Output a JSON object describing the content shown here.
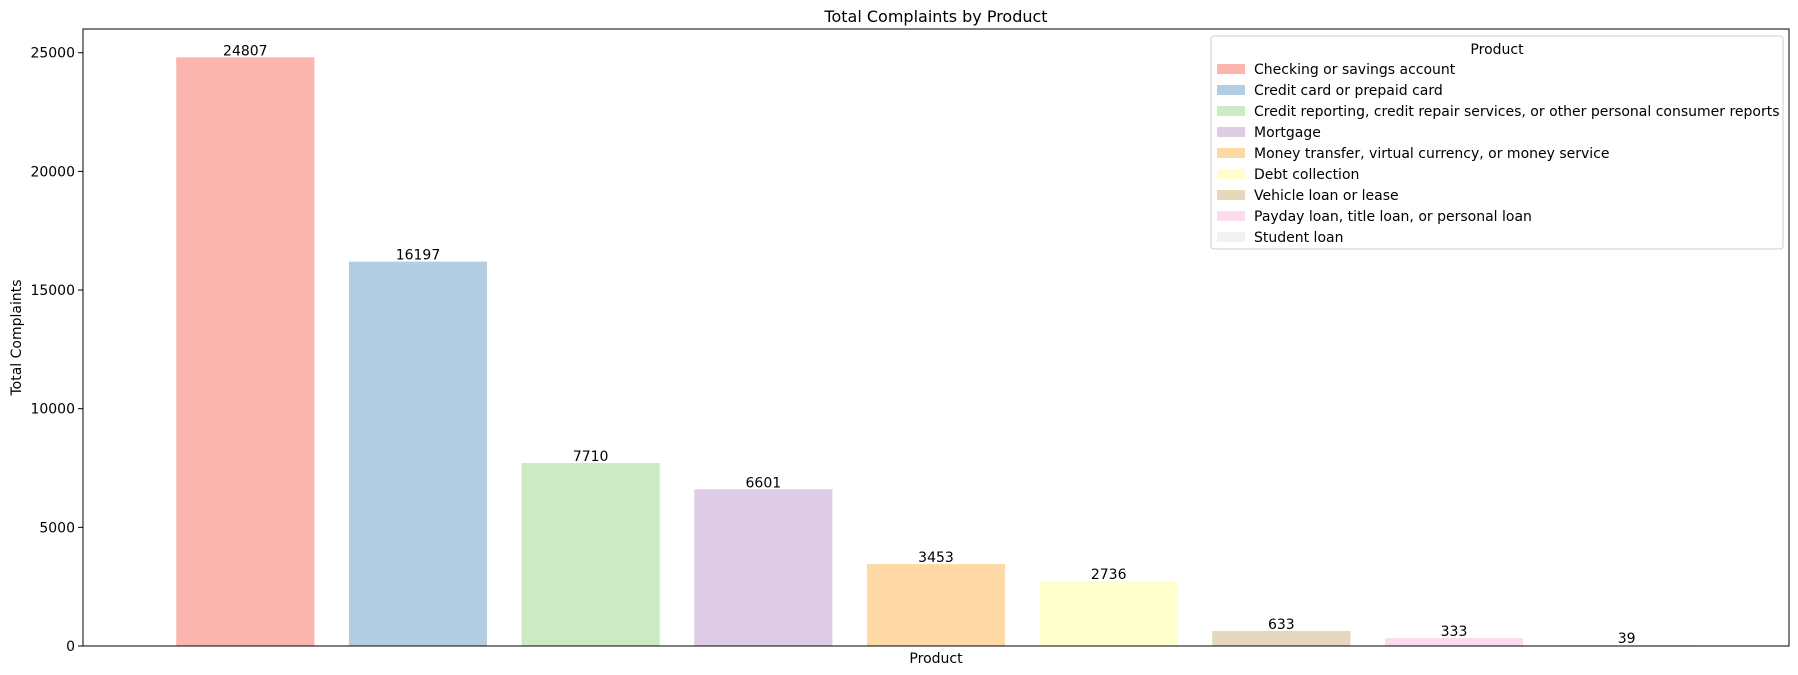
{
  "chart_data": {
    "type": "bar",
    "title": "Total Complaints by Product",
    "xlabel": "Product",
    "ylabel": "Total Complaints",
    "categories": [
      "Checking or savings account",
      "Credit card or prepaid card",
      "Credit reporting, credit repair services, or other personal consumer reports",
      "Mortgage",
      "Money transfer, virtual currency, or money service",
      "Debt collection",
      "Vehicle loan or lease",
      "Payday loan, title loan, or personal loan",
      "Student loan"
    ],
    "values": [
      24807,
      16197,
      7710,
      6601,
      3453,
      2736,
      633,
      333,
      39
    ],
    "colors": [
      "#fbb4ae",
      "#b3cde3",
      "#ccebc5",
      "#decbe4",
      "#fed9a6",
      "#ffffcc",
      "#e5d8bd",
      "#fddaec",
      "#f2f2f2"
    ],
    "ylim": [
      0,
      26000
    ],
    "yticks": [
      0,
      5000,
      10000,
      15000,
      20000,
      25000
    ],
    "show_xticks": false,
    "grid": false,
    "legend": {
      "title": "Product",
      "placement": "top-right"
    }
  }
}
